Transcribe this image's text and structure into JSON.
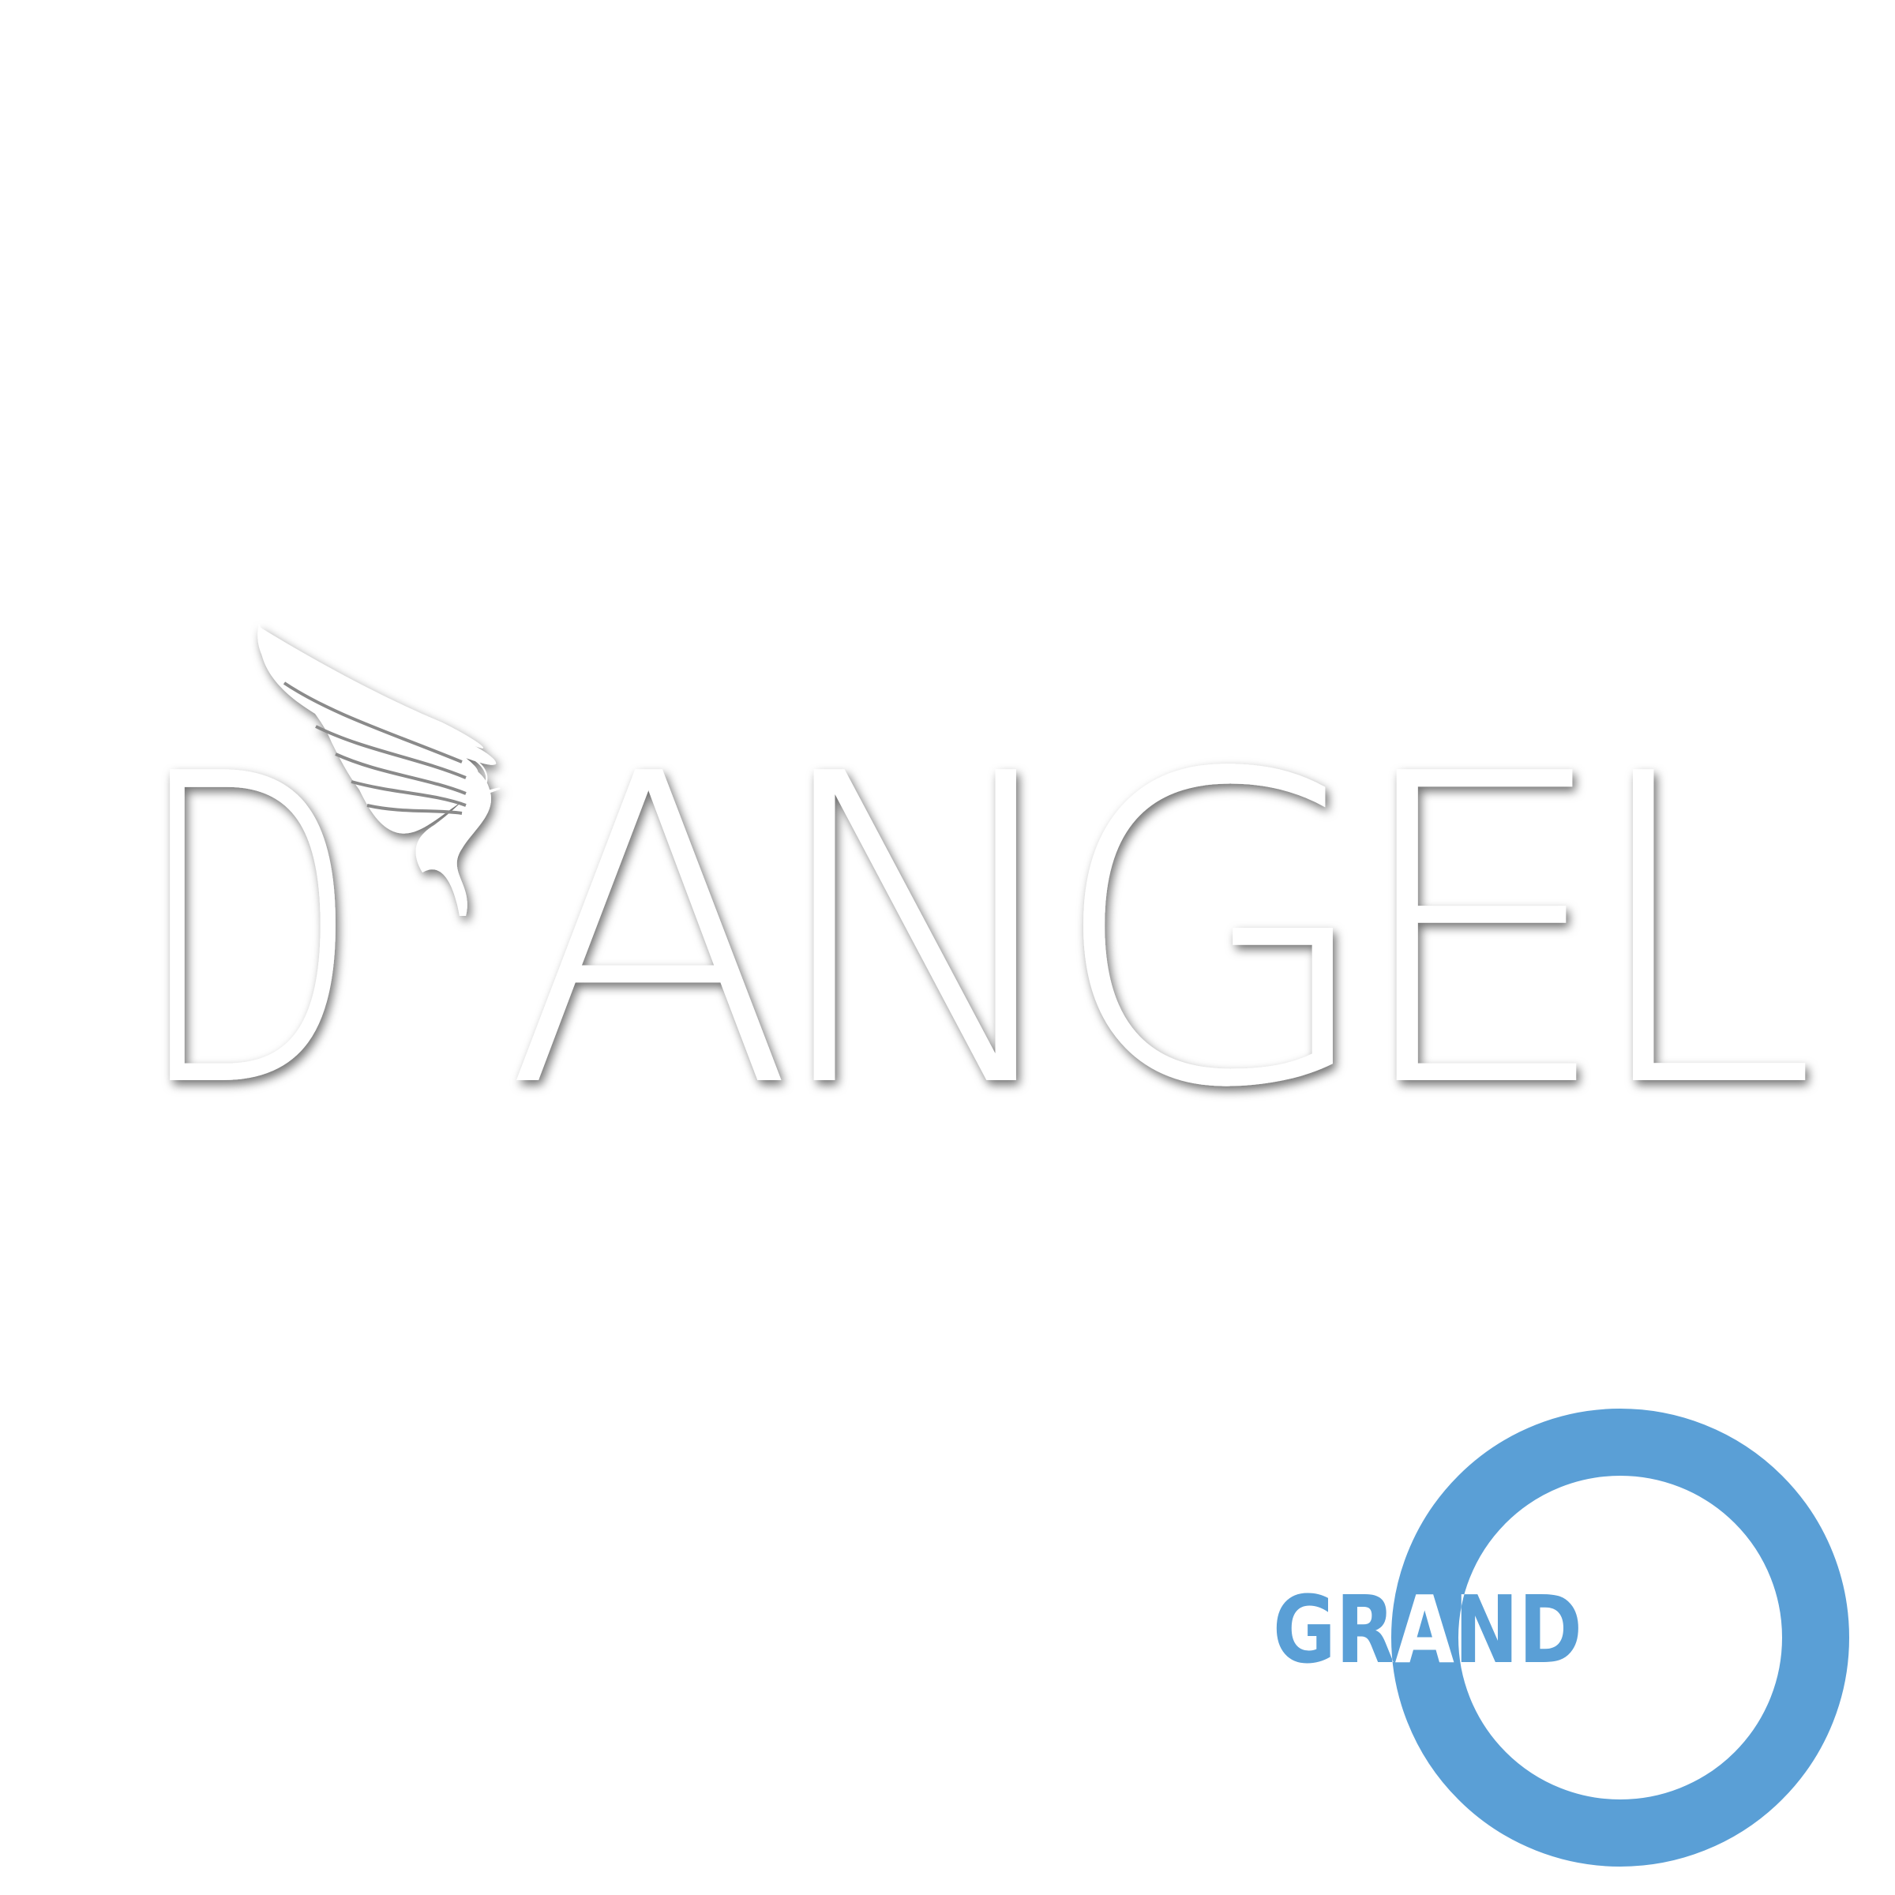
{
  "logo": {
    "initial": "D",
    "name": "ANGEL",
    "mark": "GRAND"
  }
}
